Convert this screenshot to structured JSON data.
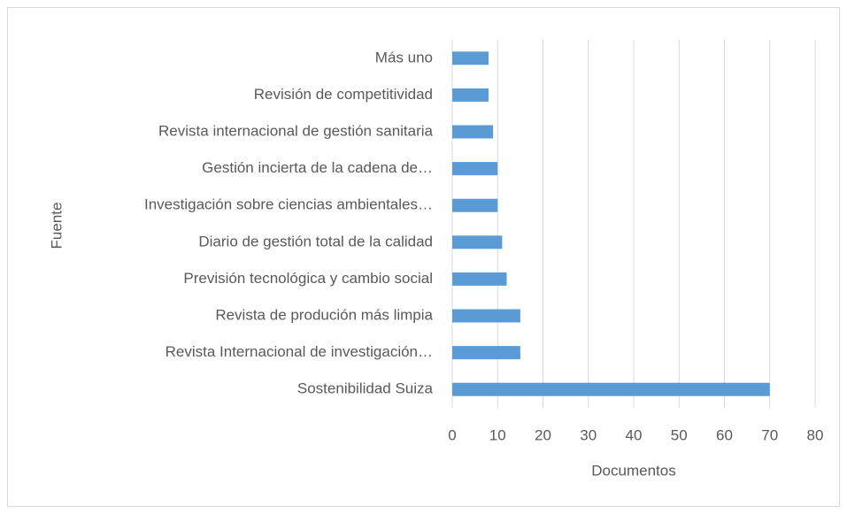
{
  "chart_data": {
    "type": "hbar",
    "categories": [
      "Más uno",
      "Revisión de competitividad",
      "Revista internacional de gestión sanitaria",
      "Gestión incierta de la cadena de…",
      "Investigación sobre ciencias ambientales…",
      "Diario de gestión total de la calidad",
      "Previsión tecnológica y cambio social",
      "Revista de produción más limpia",
      "Revista Internacional de investigación…",
      "Sostenibilidad Suiza"
    ],
    "values": [
      8,
      8,
      9,
      10,
      10,
      11,
      12,
      15,
      15,
      70
    ],
    "color": "#5b9bd5",
    "xlabel": "Documentos",
    "ylabel": "Fuente",
    "xlim": [
      0,
      80
    ],
    "xticks": [
      0,
      10,
      20,
      30,
      40,
      50,
      60,
      70,
      80
    ],
    "grid": true
  }
}
